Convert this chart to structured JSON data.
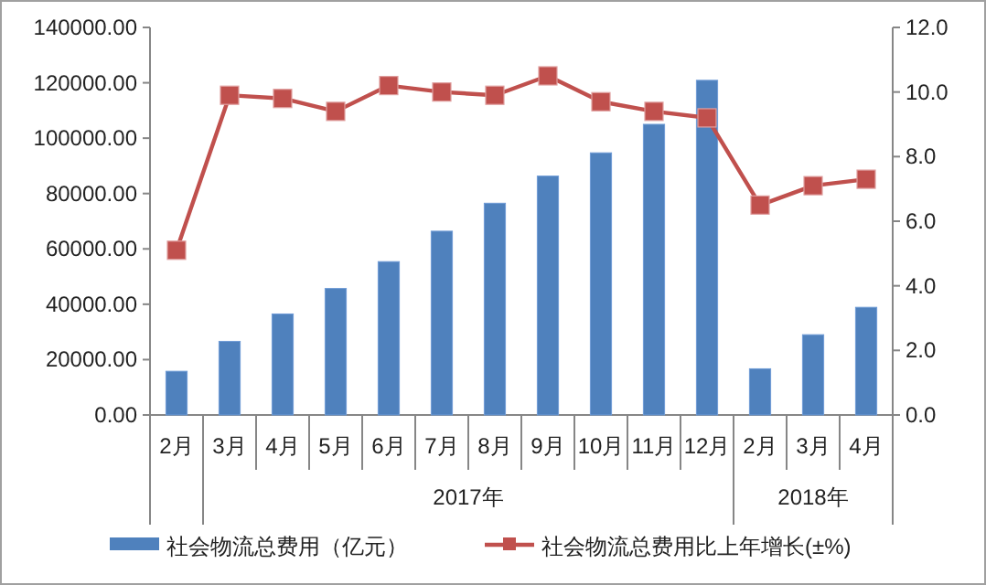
{
  "chart_data": {
    "type": "bar",
    "categories": [
      "2月",
      "3月",
      "4月",
      "5月",
      "6月",
      "7月",
      "8月",
      "9月",
      "10月",
      "11月",
      "12月",
      "2月",
      "3月",
      "4月"
    ],
    "series": [
      {
        "name": "社会物流总费用（亿元）",
        "color": "#4f81bd",
        "values": [
          15800,
          26600,
          36500,
          45700,
          55400,
          66400,
          76500,
          86300,
          94700,
          105000,
          120900,
          16700,
          29000,
          38900
        ]
      },
      {
        "name": "社会物流总费用比上年增长(±%)",
        "type": "line",
        "axis": "y2",
        "color": "#c0504d",
        "marker": "square",
        "values": [
          5.1,
          9.9,
          9.8,
          9.4,
          10.2,
          10.0,
          9.9,
          10.5,
          9.7,
          9.4,
          9.2,
          6.5,
          7.1,
          7.3
        ]
      }
    ],
    "ylim": [
      0,
      140000
    ],
    "yticks": [
      {
        "value": 0,
        "label": "0.00"
      },
      {
        "value": 20000,
        "label": "20000.00"
      },
      {
        "value": 40000,
        "label": "40000.00"
      },
      {
        "value": 60000,
        "label": "60000.00"
      },
      {
        "value": 80000,
        "label": "80000.00"
      },
      {
        "value": 100000,
        "label": "100000.00"
      },
      {
        "value": 120000,
        "label": "120000.00"
      },
      {
        "value": 140000,
        "label": "140000.00"
      }
    ],
    "y2lim": [
      0,
      12
    ],
    "y2ticks": [
      {
        "value": 0,
        "label": "0.0"
      },
      {
        "value": 2,
        "label": "2.0"
      },
      {
        "value": 4,
        "label": "4.0"
      },
      {
        "value": 6,
        "label": "6.0"
      },
      {
        "value": 8,
        "label": "8.0"
      },
      {
        "value": 10,
        "label": "10.0"
      },
      {
        "value": 12,
        "label": "12.0"
      }
    ],
    "annotations": [
      "2017年",
      "2018年"
    ],
    "legend": "bottom"
  }
}
